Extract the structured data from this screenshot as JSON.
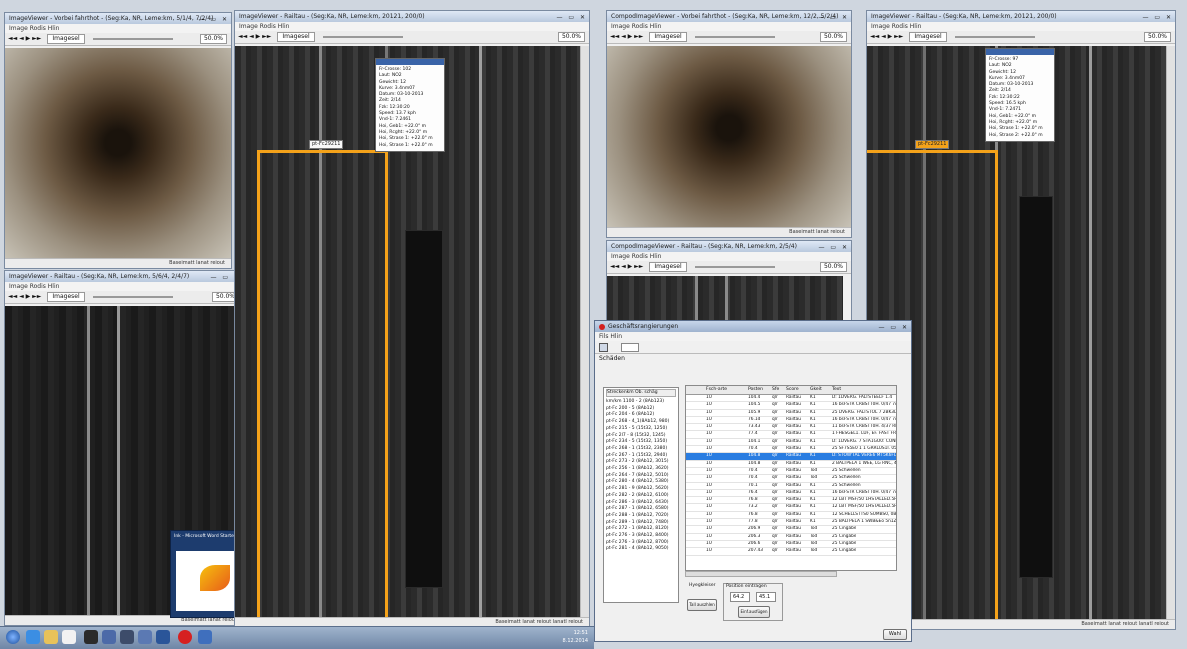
{
  "windows": {
    "vid1": {
      "title": "ImageViewer - Vorbei fahrthot - (Seg:Ka, NR, Leme:km, 5/1/4, 7/2/4)",
      "menu": "Image Rodis   Hlin"
    },
    "rail1": {
      "title": "ImageViewer - Railtau - (Seg:Ka, NR, Leme:km, 20121, 200/0)",
      "menu": "Image Rodis   Hlin",
      "status": "Baseimatt lanat  reiout  lanatl  reiout"
    },
    "lower1": {
      "title": "ImageViewer - Railtau - (Seg:Ka, NR, Leme:km, 5/6/4, 2/4/7)",
      "menu": "Image Rodis   Hlin",
      "status": "Baseimatt lanat reiout"
    },
    "vid2": {
      "title": "CompodImageViewer - Vorbei fahrthot - (Seg:Ka, NR, Leme:km, 12/2, 5/2/4)",
      "menu": "Image Rodis   Hlin",
      "status": "Baseimatt lanat reiout"
    },
    "mid2": {
      "title": "CompodImageViewer - Railtau - (Seg:Ka, NR, Leme:km, 2/5/4)",
      "menu": "Image Rodis   Hlin"
    },
    "rail2": {
      "title": "ImageViewer - Railtau - (Seg:Ka, NR, Leme:km, 20121, 200/0)",
      "menu": "Image Rodis   Hlin",
      "status": "Baseimatt lanat  reiout  lanatl  reiout"
    }
  },
  "toolbar": {
    "mode": "Imagesel",
    "zoom": "50.0%",
    "nav": "◄◄ ◄ ▶ ►►"
  },
  "rail1_overlay": {
    "tag": "pt-Fc29211",
    "info_rows": [
      "Fr-Crosse:  102",
      "Laut:  NO2",
      "Gewicht:  12",
      "Kurve:  3.4nm07",
      "Datum:  03-10-2013",
      "Zeit:  2/14",
      "Fzk:  12:30:20",
      "Speed:  13.7 kph",
      "Vnd-1:  7.2461",
      "Hoi, Geb1:  +22.0° m",
      "Hoi, Rcght:  +22.0° m",
      "Hoi, Strase 1:  +22.0° m",
      "Hoi, Strase 1:  +22.0° m"
    ]
  },
  "rail2_overlay": {
    "tag": "pt-Fc29211",
    "info_rows": [
      "Fr-Crosse:  97",
      "Laut:  NO2",
      "Gewicht:  12",
      "Kurve:  3.4nm07",
      "Datum:  03-10-2013",
      "Zeit:  2/14",
      "Fzk:  12:30:22",
      "Speed:  16.5 kph",
      "Vnd-1:  7.2471",
      "Hoi, Geb1:  +22.0° m",
      "Hoi, Rcght:  +22.0° m",
      "Hoi, Strase 1:  +22.0° m",
      "Hoi, Strase 2:  +22.0° m"
    ]
  },
  "notification": {
    "title": "Ink - Microsoft Word Starter"
  },
  "dialog": {
    "title": "Geschäftsrangierungen",
    "menu": "Fils   Hlin",
    "tab": "Schäden",
    "tree_header": "Streckenkm  ",
    "tree_header2": "Ob. schäg",
    "tree_items": [
      "km/km 1100 - 2 (8Ab123)",
      "pt-Fc 200 - 5 (8Ab12)",
      "pt-Fc 204 - 6 (8Ab12)",
      "pt-Fc 268 - 4_1(8Ab12, 980)",
      "pt-Fc 215 - 5 (15t32, 1250)",
      "pt-Fc 2l7 - 8 (15t32, 1245)",
      "pt-Fc 234 - 5 (15t32, 1350)",
      "pt-Fc 268 - 1 (15t32, 2380)",
      "pt-Fc 267 - 1 (15t32, 2940)",
      "pt-Fc 273 - 2 (8Ab12, 3015)",
      "pt-Fc 256 - 1 (8Ab12, 3620)",
      "pt-Fc 264 - 7 (8Ab12, 5010)",
      "pt-Fc 280 - 4 (8Ab12, 5380)",
      "pt-Fc 281 - 9 (8Ab12, 5620)",
      "pt-Fc 282 - 2 (8Ab12, 6100)",
      "pt-Fc 286 - 3 (8Ab12, 6430)",
      "pt-Fc 287 - 1 (8Ab12, 6580)",
      "pt-Fc 288 - 1 (8Ab12, 7020)",
      "pt-Fc 289 - 1 (8Ab12, 7480)",
      "pt-Fc 272 - 1 (8Ab12, 8120)",
      "pt-Fc 276 - 3 (8Ab12, 8400)",
      "pt-Fc 276 - 3 (8Ab12, 8700)",
      "pt-Fc 281 - 4 (8Ab12, 9050)"
    ],
    "grid_headers": [
      "",
      "Fsch-arte",
      "Posten",
      "Sfe",
      "Score",
      "Gkeit",
      "Text"
    ],
    "grid_rows": [
      [
        "",
        "1U",
        "104.4",
        "qlr",
        "Railtau",
        "K1",
        "D: 1DVERG. FALTSTEELF 1.4"
      ],
      [
        "",
        "1U",
        "104.5",
        "qlr",
        "Railtau",
        "K1",
        "16 bsFSTR CRBSTT0H. 0/47 7AB"
      ],
      [
        "",
        "1U",
        "105.9",
        "qlr",
        "Railtau",
        "K1",
        "25 DVERG. FALTSTOL 7 2BK3D"
      ],
      [
        "",
        "1U",
        "76.1d",
        "qlr",
        "Railtau",
        "K1",
        "16 bsFSTR CRBSTT0H. 0/47 7AB"
      ],
      [
        "",
        "1U",
        "73.43",
        "qlr",
        "Railtau",
        "K1",
        "11 bsFSTR CRBSTT0H. 4/37 RK"
      ],
      [
        "",
        "1U",
        "77.4",
        "qlr",
        "Railtau",
        "K1",
        "1 FHESGEL1. LUF, EF. FAST FRE"
      ],
      [
        "",
        "1U",
        "104.1",
        "qlr",
        "Railtau",
        "K1",
        "D: 1DVERG. 7 STA1GO0: CONF-SE"
      ],
      [
        "",
        "1U",
        "70.4",
        "qlr",
        "Railtau",
        "K1",
        "25 SF7S5E0 1 1 GRRLUS1I. 05 MI"
      ],
      [
        "",
        "1U",
        "104.8",
        "qlr",
        "Railtau",
        "K1",
        "D: STOW'TAL VERE6 MT5K6FLA"
      ],
      [
        "",
        "1U",
        "104.8",
        "qlr",
        "Railtau",
        "K1",
        "2 BALTPELA 1 WEE, LG RNC, 4E"
      ],
      [
        "",
        "1U",
        "70.4",
        "qlr",
        "Railtau",
        "Tod",
        "25 Schwellen"
      ],
      [
        "",
        "1U",
        "70.4",
        "qlr",
        "Railtau",
        "Tod",
        "25 Schwellen"
      ],
      [
        "",
        "1U",
        "70.1",
        "qlr",
        "Railtau",
        "K1",
        "25 Schwellen"
      ],
      [
        "",
        "1U",
        "76.4",
        "qlr",
        "Railtau",
        "K1",
        "16 bsFSTR CRBSTT0H. 0/47 7AB"
      ],
      [
        "",
        "1U",
        "76.8",
        "qlr",
        "Railtau",
        "K1",
        "12 LBT MSF/50 1HSTALLED.5HFR"
      ],
      [
        "",
        "1U",
        "73.2",
        "qlr",
        "Railtau",
        "K1",
        "12 LBT MSF/50 1HSTALLED.5HFR"
      ],
      [
        "",
        "1U",
        "76.8",
        "qlr",
        "Railtau",
        "K1",
        "12 SCHELLSTTS0 SUMBS0, 0BT"
      ],
      [
        "",
        "1U",
        "77.8",
        "qlr",
        "Railtau",
        "K1",
        "25 BALTPELA 1 SWB&Eo 5n1ZT6"
      ],
      [
        "",
        "1U",
        "206.9",
        "qlr",
        "Railtau",
        "Tod",
        "25 Cingabe"
      ],
      [
        "",
        "1U",
        "206.3",
        "qlr",
        "Railtau",
        "Tod",
        "25 Cingabe"
      ],
      [
        "",
        "1U",
        "206.6",
        "qlr",
        "Railtau",
        "Tod",
        "25 Cingabe"
      ],
      [
        "",
        "1U",
        "207.43",
        "qlr",
        "Railtau",
        "Tod",
        "25 Cingabe"
      ]
    ],
    "selected_row": 8,
    "lbl_rauflage": "Hyegkleiser",
    "lbl_position": "Position eintragen",
    "btn_auswahlen": "Tall auszhlen",
    "field_left": "64.2",
    "field_right": "45.1",
    "btn_einfuegen": "Einf.ausfügen",
    "btn_ok": "Wahl"
  },
  "taskbar": {
    "time": "12:51",
    "date": "8.12.2014"
  }
}
